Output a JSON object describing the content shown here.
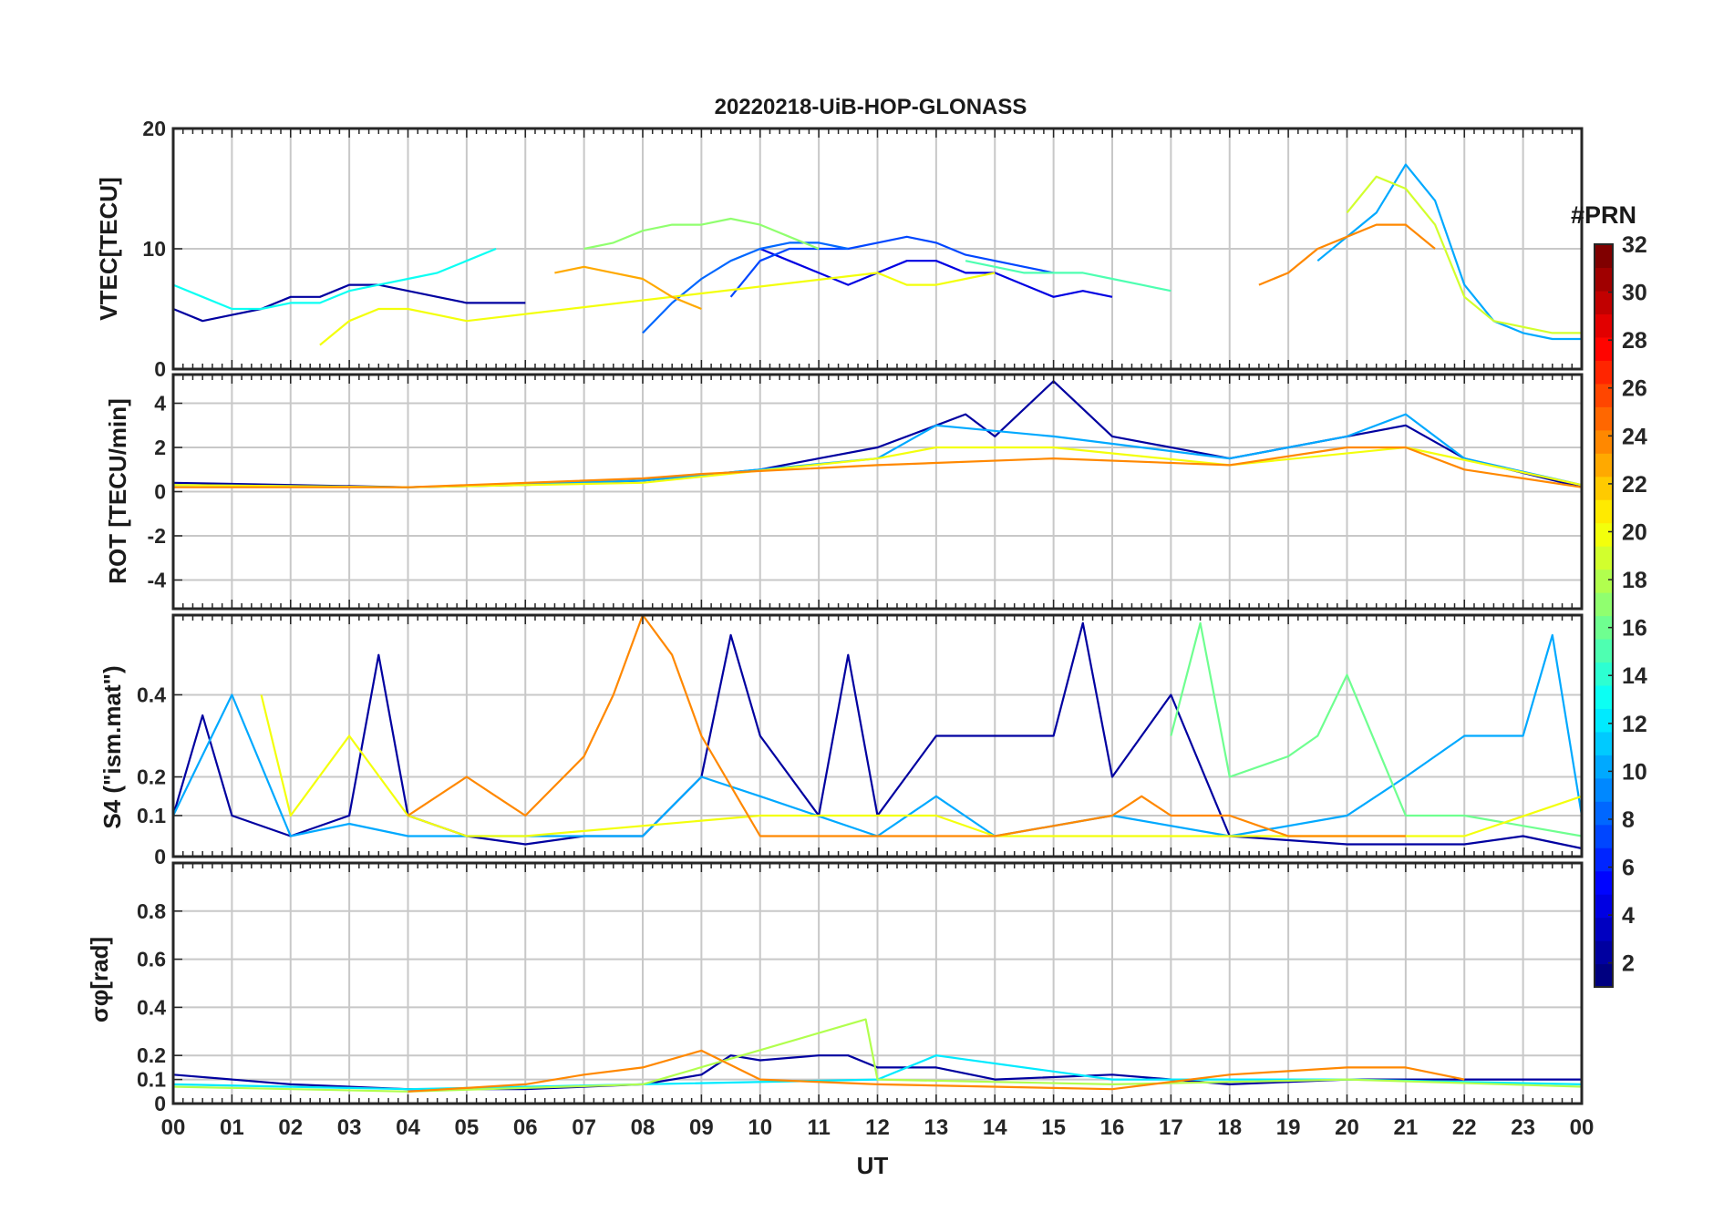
{
  "chart_data": {
    "type": "line",
    "title": "20220218-UiB-HOP-GLONASS",
    "xlabel": "UT",
    "xlim": [
      0,
      24
    ],
    "x_tick_labels": [
      "00",
      "01",
      "02",
      "03",
      "04",
      "05",
      "06",
      "07",
      "08",
      "09",
      "10",
      "11",
      "12",
      "13",
      "14",
      "15",
      "16",
      "17",
      "18",
      "19",
      "20",
      "21",
      "22",
      "23",
      "00"
    ],
    "grid": true,
    "colorbar": {
      "title": "#PRN",
      "clim": [
        1,
        32
      ],
      "tick_labels": [
        "2",
        "4",
        "6",
        "8",
        "10",
        "12",
        "14",
        "16",
        "18",
        "20",
        "22",
        "24",
        "26",
        "28",
        "30",
        "32"
      ],
      "colormap": "jet",
      "placement": "right"
    },
    "panels": [
      {
        "ylabel": "VTEC[TECU]",
        "ylim": [
          0,
          20
        ],
        "y_tick_labels": [
          "0",
          "10",
          "20"
        ],
        "series": [
          {
            "prn": 2,
            "x": [
              0,
              0.5,
              1,
              1.5,
              2,
              2.5,
              3,
              3.5,
              4,
              4.5,
              5,
              5.5,
              6
            ],
            "y": [
              5,
              4,
              4.5,
              5,
              6,
              6,
              7,
              7,
              6.5,
              6,
              5.5,
              5.5,
              5.5
            ]
          },
          {
            "prn": 4,
            "x": [
              10,
              10.5,
              11,
              11.5,
              12,
              12.5,
              13,
              13.5,
              14,
              14.5,
              15,
              15.5,
              16
            ],
            "y": [
              10,
              9,
              8,
              7,
              8,
              9,
              9,
              8,
              8,
              7,
              6,
              6.5,
              6
            ]
          },
          {
            "prn": 7,
            "x": [
              9.5,
              10,
              10.5,
              11,
              11.5,
              12,
              12.5,
              13,
              13.5,
              14,
              14.5,
              15
            ],
            "y": [
              6,
              9,
              10,
              10,
              10,
              10.5,
              11,
              10.5,
              9.5,
              9,
              8.5,
              8
            ]
          },
          {
            "prn": 8,
            "x": [
              8,
              8.5,
              9,
              9.5,
              10,
              10.5,
              11,
              11.5
            ],
            "y": [
              3,
              5.5,
              7.5,
              9,
              10,
              10.5,
              10.5,
              10
            ]
          },
          {
            "prn": 10,
            "x": [
              19.5,
              20,
              20.5,
              21,
              21.5,
              22,
              22.5,
              23,
              23.5,
              24
            ],
            "y": [
              9,
              11,
              13,
              17,
              14,
              7,
              4,
              3,
              2.5,
              2.5
            ]
          },
          {
            "prn": 13,
            "x": [
              0,
              0.5,
              1,
              1.5,
              2,
              2.5,
              3,
              3.5,
              4,
              4.5,
              5,
              5.5
            ],
            "y": [
              7,
              6,
              5,
              5,
              5.5,
              5.5,
              6.5,
              7,
              7.5,
              8,
              9,
              10
            ]
          },
          {
            "prn": 15,
            "x": [
              13.5,
              14,
              14.5,
              15,
              15.5,
              16,
              16.5,
              17
            ],
            "y": [
              9,
              8.5,
              8,
              8,
              8,
              7.5,
              7,
              6.5
            ]
          },
          {
            "prn": 17,
            "x": [
              7,
              7.5,
              8,
              8.5,
              9,
              9.5,
              10,
              10.5,
              11
            ],
            "y": [
              10,
              10.5,
              11.5,
              12,
              12,
              12.5,
              12,
              11,
              10
            ]
          },
          {
            "prn": 19,
            "x": [
              20,
              20.5,
              21,
              21.5,
              22,
              22.5,
              23,
              23.5,
              24
            ],
            "y": [
              13,
              16,
              15,
              12,
              6,
              4,
              3.5,
              3,
              3
            ]
          },
          {
            "prn": 20,
            "x": [
              2.5,
              3,
              3.5,
              4,
              4.5,
              5,
              12,
              12.5,
              13,
              13.5,
              14
            ],
            "y": [
              2,
              4,
              5,
              5,
              4.5,
              4,
              8,
              7,
              7,
              7.5,
              8
            ]
          },
          {
            "prn": 23,
            "x": [
              6.5,
              7,
              7.5,
              8,
              8.5,
              9
            ],
            "y": [
              8,
              8.5,
              8,
              7.5,
              6,
              5
            ]
          },
          {
            "prn": 24,
            "x": [
              18.5,
              19,
              19.5,
              20,
              20.5,
              21,
              21.5
            ],
            "y": [
              7,
              8,
              10,
              11,
              12,
              12,
              10
            ]
          }
        ]
      },
      {
        "ylabel": "ROT [TECU/min]",
        "ylim": [
          -5.3,
          5.3
        ],
        "y_tick_labels": [
          "-4",
          "-2",
          "0",
          "2",
          "4"
        ],
        "series": [
          {
            "prn": 2,
            "x": [
              0,
              2,
              4,
              6,
              8,
              10,
              11,
              12,
              13,
              13.5,
              14,
              15,
              16,
              18,
              20,
              21,
              22,
              24
            ],
            "y": [
              0.4,
              0.3,
              0.2,
              0.3,
              0.5,
              1,
              1.5,
              2,
              3,
              3.5,
              2.5,
              5,
              2.5,
              1.5,
              2.5,
              3,
              1.5,
              0.2
            ]
          },
          {
            "prn": 10,
            "x": [
              0,
              4,
              8,
              12,
              13,
              15,
              18,
              20,
              21,
              22,
              24
            ],
            "y": [
              0.3,
              0.2,
              0.5,
              1.5,
              3,
              2.5,
              1.5,
              2.5,
              3.5,
              1.5,
              0.3
            ]
          },
          {
            "prn": 20,
            "x": [
              0,
              4,
              8,
              12,
              13,
              15,
              18,
              21,
              24
            ],
            "y": [
              0.3,
              0.2,
              0.4,
              1.5,
              2,
              2,
              1.2,
              2,
              0.3
            ]
          },
          {
            "prn": 24,
            "x": [
              0,
              4,
              8,
              9,
              12,
              15,
              18,
              20,
              21,
              22,
              24
            ],
            "y": [
              0.2,
              0.2,
              0.6,
              0.8,
              1.2,
              1.5,
              1.2,
              2,
              2,
              1,
              0.2
            ]
          }
        ]
      },
      {
        "ylabel": "S4 (\"ism.mat\")",
        "ylim": [
          0,
          0.6
        ],
        "y_tick_labels": [
          "0",
          "0.1",
          "0.2",
          "0.4"
        ],
        "series": [
          {
            "prn": 2,
            "x": [
              0,
              0.5,
              1,
              2,
              3,
              3.5,
              4,
              5,
              6,
              7,
              8,
              9,
              9.5,
              10,
              11,
              11.5,
              12,
              13,
              14,
              15,
              15.5,
              16,
              17,
              18,
              20,
              22,
              23,
              24
            ],
            "y": [
              0.1,
              0.35,
              0.1,
              0.05,
              0.1,
              0.5,
              0.1,
              0.05,
              0.03,
              0.05,
              0.05,
              0.2,
              0.55,
              0.3,
              0.1,
              0.5,
              0.1,
              0.3,
              0.3,
              0.3,
              0.58,
              0.2,
              0.4,
              0.05,
              0.03,
              0.03,
              0.05,
              0.02
            ]
          },
          {
            "prn": 10,
            "x": [
              0,
              1,
              2,
              3,
              4,
              6,
              8,
              9,
              10,
              12,
              13,
              14,
              16,
              18,
              20,
              21,
              22,
              23,
              23.5,
              24
            ],
            "y": [
              0.1,
              0.4,
              0.05,
              0.08,
              0.05,
              0.05,
              0.05,
              0.2,
              0.15,
              0.05,
              0.15,
              0.05,
              0.1,
              0.05,
              0.1,
              0.2,
              0.3,
              0.3,
              0.55,
              0.1
            ]
          },
          {
            "prn": 16,
            "x": [
              17,
              17.5,
              18,
              19,
              19.5,
              20,
              21,
              22,
              24
            ],
            "y": [
              0.3,
              0.58,
              0.2,
              0.25,
              0.3,
              0.45,
              0.1,
              0.1,
              0.05
            ]
          },
          {
            "prn": 20,
            "x": [
              1.5,
              2,
              3,
              4,
              5,
              6,
              10,
              12,
              13,
              14,
              16,
              18,
              20,
              22,
              24
            ],
            "y": [
              0.4,
              0.1,
              0.3,
              0.1,
              0.05,
              0.05,
              0.1,
              0.1,
              0.1,
              0.05,
              0.05,
              0.05,
              0.05,
              0.05,
              0.15
            ]
          },
          {
            "prn": 24,
            "x": [
              4,
              5,
              5.5,
              6,
              7,
              7.5,
              8,
              8.5,
              9,
              10,
              14,
              16,
              16.5,
              17,
              18,
              19,
              20,
              21
            ],
            "y": [
              0.1,
              0.2,
              0.15,
              0.1,
              0.25,
              0.4,
              0.6,
              0.5,
              0.3,
              0.05,
              0.05,
              0.1,
              0.15,
              0.1,
              0.1,
              0.05,
              0.05,
              0.05
            ]
          }
        ]
      },
      {
        "ylabel": "σφ[rad]",
        "ylim": [
          0,
          1
        ],
        "y_tick_labels": [
          "0",
          "0.1",
          "0.2",
          "0.4",
          "0.6",
          "0.8"
        ],
        "series": [
          {
            "prn": 2,
            "x": [
              0,
              2,
              4,
              6,
              8,
              9,
              9.5,
              10,
              11,
              11.5,
              12,
              13,
              14,
              16,
              18,
              20,
              22,
              24
            ],
            "y": [
              0.12,
              0.08,
              0.06,
              0.06,
              0.08,
              0.12,
              0.2,
              0.18,
              0.2,
              0.2,
              0.15,
              0.15,
              0.1,
              0.12,
              0.08,
              0.1,
              0.1,
              0.1
            ]
          },
          {
            "prn": 12,
            "x": [
              0,
              4,
              8,
              12,
              13,
              16,
              20,
              24
            ],
            "y": [
              0.08,
              0.06,
              0.08,
              0.1,
              0.2,
              0.1,
              0.1,
              0.08
            ]
          },
          {
            "prn": 18,
            "x": [
              0,
              4,
              8,
              11.8,
              12,
              16,
              20,
              24
            ],
            "y": [
              0.07,
              0.05,
              0.08,
              0.35,
              0.1,
              0.08,
              0.1,
              0.07
            ]
          },
          {
            "prn": 24,
            "x": [
              4,
              6,
              7,
              8,
              9,
              10,
              12,
              16,
              18,
              20,
              21,
              22
            ],
            "y": [
              0.05,
              0.08,
              0.12,
              0.15,
              0.22,
              0.1,
              0.08,
              0.06,
              0.12,
              0.15,
              0.15,
              0.1
            ]
          }
        ]
      }
    ]
  }
}
